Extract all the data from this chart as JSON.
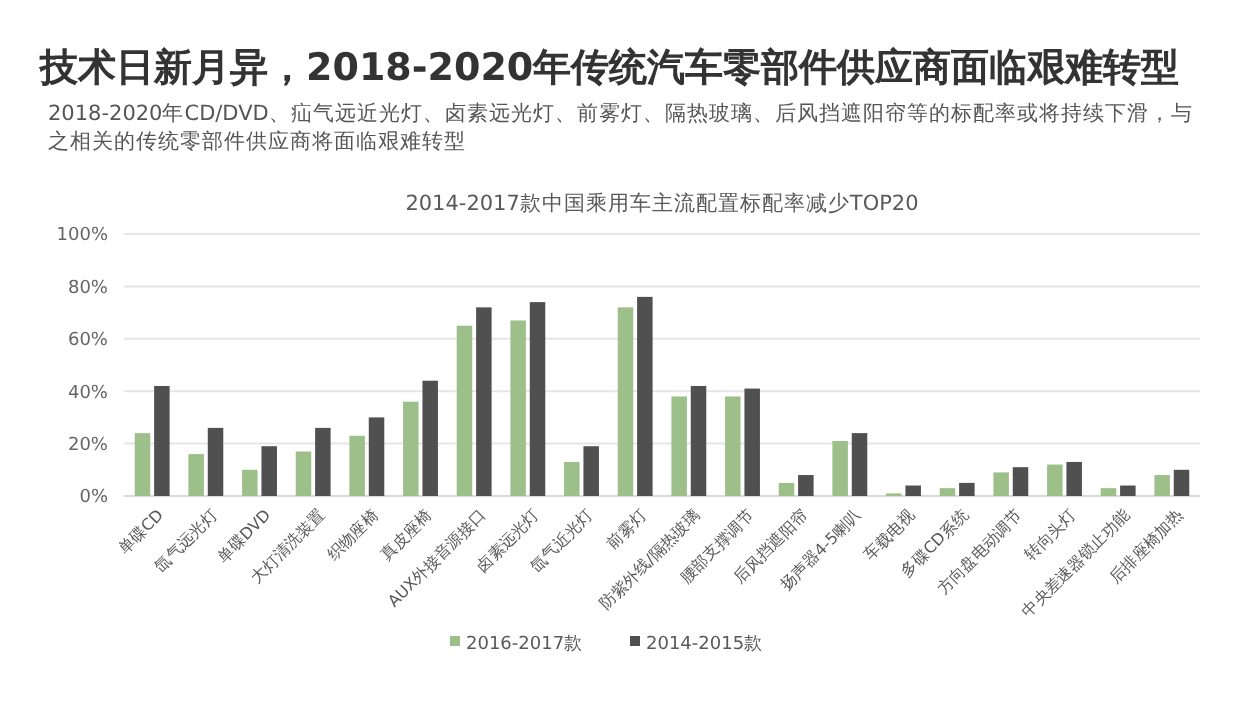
{
  "chart_data": {
    "type": "bar",
    "title": "技术日新月异，2018-2020年传统汽车零部件供应商面临艰难转型",
    "subtitle": "2018-2020年CD/DVD、疝气远近光灯、卤素远光灯、前雾灯、隔热玻璃、后风挡遮阳帘等的标配率或将持续下滑，与之相关的传统零部件供应商将面临艰难转型",
    "annotations": [
      "2014-2017款中国乘用车主流配置标配率减少TOP20"
    ],
    "categories": [
      "单碟CD",
      "氙气远光灯",
      "单碟DVD",
      "大灯清洗装置",
      "织物座椅",
      "真皮座椅",
      "AUX外接音源接口",
      "卤素远光灯",
      "氙气近光灯",
      "前雾灯",
      "防紫外线/隔热玻璃",
      "腰部支撑调节",
      "后风挡遮阳帘",
      "扬声器4-5喇叭",
      "车载电视",
      "多碟CD系统",
      "方向盘电动调节",
      "转向头灯",
      "中央差速器锁止功能",
      "后排座椅加热"
    ],
    "series": [
      {
        "name": "2016-2017款",
        "color": "#9dc08b",
        "values": [
          24,
          16,
          10,
          17,
          23,
          36,
          65,
          67,
          13,
          72,
          38,
          38,
          5,
          21,
          1,
          3,
          9,
          12,
          3,
          8
        ]
      },
      {
        "name": "2014-2015款",
        "color": "#505050",
        "values": [
          42,
          26,
          19,
          26,
          30,
          44,
          72,
          74,
          19,
          76,
          42,
          41,
          8,
          24,
          4,
          5,
          11,
          13,
          4,
          10
        ]
      }
    ],
    "ylim": [
      0,
      100
    ],
    "yticks": [
      {
        "value": 0,
        "label": "0%"
      },
      {
        "value": 20,
        "label": "20%"
      },
      {
        "value": 40,
        "label": "40%"
      },
      {
        "value": 60,
        "label": "60%"
      },
      {
        "value": 80,
        "label": "80%"
      },
      {
        "value": 100,
        "label": "100%"
      }
    ],
    "grid": "y",
    "legend": "bottom"
  }
}
